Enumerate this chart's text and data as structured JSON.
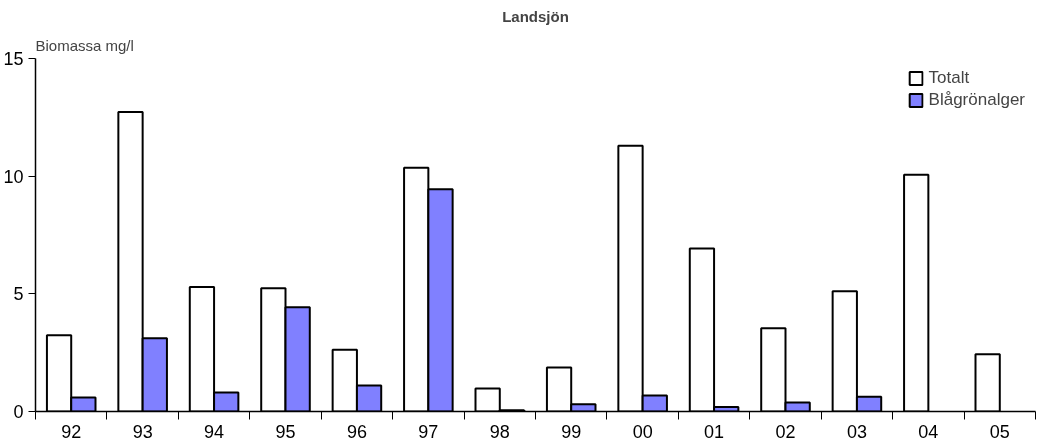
{
  "chart_data": {
    "type": "bar",
    "title": "Landsjön",
    "ylabel": "Biomassa mg/l",
    "categories": [
      "92",
      "93",
      "94",
      "95",
      "96",
      "97",
      "98",
      "99",
      "00",
      "01",
      "02",
      "03",
      "04",
      "05"
    ],
    "series": [
      {
        "name": "Totalt",
        "color": "#ffffff",
        "values": [
          3.24,
          12.73,
          5.29,
          5.24,
          2.62,
          10.36,
          0.98,
          1.87,
          11.29,
          6.93,
          3.54,
          5.11,
          10.06,
          2.43
        ]
      },
      {
        "name": "Blågrönalger",
        "color": "#8080ff",
        "values": [
          0.6,
          3.11,
          0.81,
          4.43,
          1.11,
          9.44,
          0.05,
          0.31,
          0.68,
          0.19,
          0.38,
          0.63,
          null,
          null
        ]
      }
    ],
    "ylim": [
      0,
      15
    ],
    "yticks": [
      0,
      5,
      10,
      15
    ],
    "grid": false,
    "legend": "top right"
  }
}
